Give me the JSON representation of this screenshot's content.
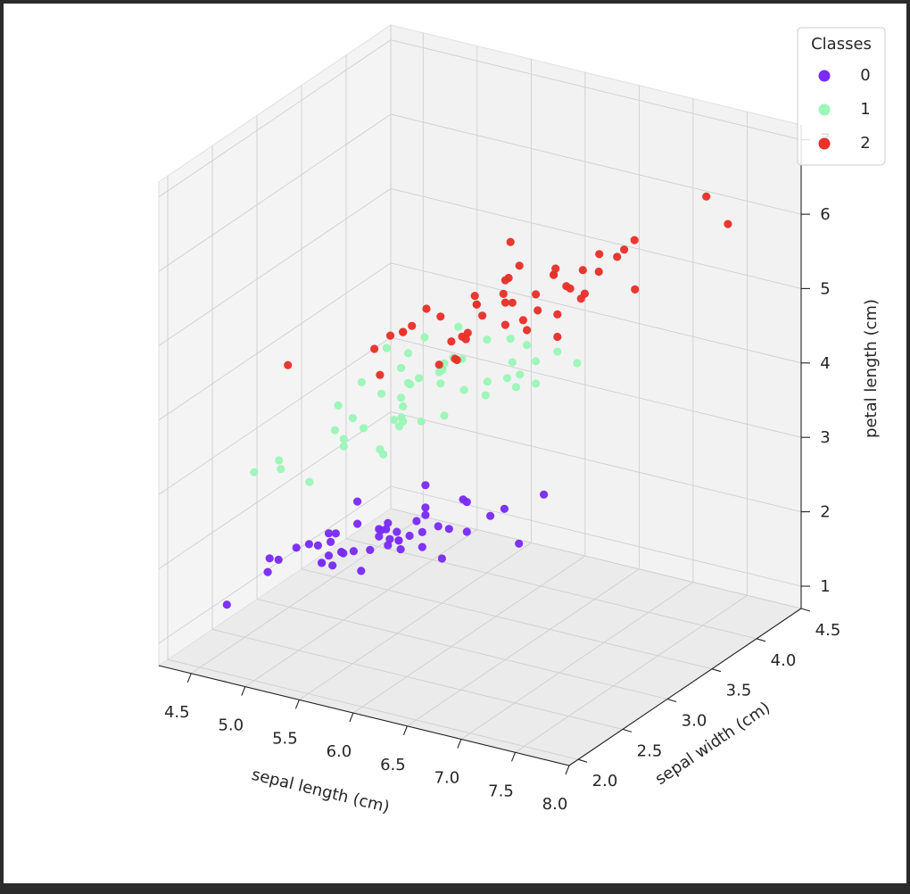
{
  "chart_data": {
    "type": "scatter",
    "subtype": "3d-scatter",
    "title": "",
    "xlabel": "sepal length (cm)",
    "ylabel": "sepal width (cm)",
    "zlabel": "petal length (cm)",
    "xlim": [
      4.2,
      8.0
    ],
    "ylim": [
      1.9,
      4.5
    ],
    "zlim": [
      0.7,
      7.2
    ],
    "xticks": [
      "4.5",
      "5.0",
      "5.5",
      "6.0",
      "6.5",
      "7.0",
      "7.5",
      "8.0"
    ],
    "yticks": [
      "2.0",
      "2.5",
      "3.0",
      "3.5",
      "4.0",
      "4.5"
    ],
    "zticks": [
      "1",
      "2",
      "3",
      "4",
      "5",
      "6",
      "7"
    ],
    "grid": true,
    "legend": {
      "title": "Classes",
      "placement": "top-right"
    },
    "series": [
      {
        "name": "0",
        "color": "#7a2cf5",
        "points": [
          [
            5.1,
            3.5,
            1.4
          ],
          [
            4.9,
            3.0,
            1.4
          ],
          [
            4.7,
            3.2,
            1.3
          ],
          [
            4.6,
            3.1,
            1.5
          ],
          [
            5.0,
            3.6,
            1.4
          ],
          [
            5.4,
            3.9,
            1.7
          ],
          [
            4.6,
            3.4,
            1.4
          ],
          [
            5.0,
            3.4,
            1.5
          ],
          [
            4.4,
            2.9,
            1.4
          ],
          [
            4.9,
            3.1,
            1.5
          ],
          [
            5.4,
            3.7,
            1.5
          ],
          [
            4.8,
            3.4,
            1.6
          ],
          [
            4.8,
            3.0,
            1.4
          ],
          [
            4.3,
            3.0,
            1.1
          ],
          [
            5.8,
            4.0,
            1.2
          ],
          [
            5.7,
            4.4,
            1.5
          ],
          [
            5.4,
            3.9,
            1.3
          ],
          [
            5.1,
            3.5,
            1.4
          ],
          [
            5.7,
            3.8,
            1.7
          ],
          [
            5.1,
            3.8,
            1.5
          ],
          [
            5.4,
            3.4,
            1.7
          ],
          [
            5.1,
            3.7,
            1.5
          ],
          [
            4.6,
            3.6,
            1.0
          ],
          [
            5.1,
            3.3,
            1.7
          ],
          [
            4.8,
            3.4,
            1.9
          ],
          [
            5.0,
            3.0,
            1.6
          ],
          [
            5.0,
            3.4,
            1.6
          ],
          [
            5.2,
            3.5,
            1.5
          ],
          [
            5.2,
            3.4,
            1.4
          ],
          [
            4.7,
            3.2,
            1.6
          ],
          [
            4.8,
            3.1,
            1.6
          ],
          [
            5.4,
            3.4,
            1.5
          ],
          [
            5.2,
            4.1,
            1.5
          ],
          [
            5.5,
            4.2,
            1.4
          ],
          [
            4.9,
            3.1,
            1.5
          ],
          [
            5.0,
            3.2,
            1.2
          ],
          [
            5.5,
            3.5,
            1.3
          ],
          [
            4.9,
            3.6,
            1.4
          ],
          [
            4.4,
            3.0,
            1.3
          ],
          [
            5.1,
            3.4,
            1.5
          ],
          [
            5.0,
            3.5,
            1.3
          ],
          [
            4.5,
            2.3,
            1.3
          ],
          [
            4.4,
            3.2,
            1.3
          ],
          [
            5.0,
            3.5,
            1.6
          ],
          [
            5.1,
            3.8,
            1.9
          ],
          [
            4.8,
            3.0,
            1.4
          ],
          [
            5.1,
            3.8,
            1.6
          ],
          [
            4.6,
            3.2,
            1.4
          ],
          [
            5.3,
            3.7,
            1.5
          ],
          [
            5.0,
            3.3,
            1.4
          ]
        ]
      },
      {
        "name": "1",
        "color": "#9cf6b8",
        "points": [
          [
            7.0,
            3.2,
            4.7
          ],
          [
            6.4,
            3.2,
            4.5
          ],
          [
            6.9,
            3.1,
            4.9
          ],
          [
            5.5,
            2.3,
            4.0
          ],
          [
            6.5,
            2.8,
            4.6
          ],
          [
            5.7,
            2.8,
            4.5
          ],
          [
            6.3,
            3.3,
            4.7
          ],
          [
            4.9,
            2.4,
            3.3
          ],
          [
            6.6,
            2.9,
            4.6
          ],
          [
            5.2,
            2.7,
            3.9
          ],
          [
            5.0,
            2.0,
            3.5
          ],
          [
            5.9,
            3.0,
            4.2
          ],
          [
            6.0,
            2.2,
            4.0
          ],
          [
            6.1,
            2.9,
            4.7
          ],
          [
            5.6,
            2.9,
            3.6
          ],
          [
            6.7,
            3.1,
            4.4
          ],
          [
            5.6,
            3.0,
            4.5
          ],
          [
            5.8,
            2.7,
            4.1
          ],
          [
            6.2,
            2.2,
            4.5
          ],
          [
            5.6,
            2.5,
            3.9
          ],
          [
            5.9,
            3.2,
            4.8
          ],
          [
            6.1,
            2.8,
            4.0
          ],
          [
            6.3,
            2.5,
            4.9
          ],
          [
            6.1,
            2.8,
            4.7
          ],
          [
            6.4,
            2.9,
            4.3
          ],
          [
            6.6,
            3.0,
            4.4
          ],
          [
            6.8,
            2.8,
            4.8
          ],
          [
            6.7,
            3.0,
            5.0
          ],
          [
            6.0,
            2.9,
            4.5
          ],
          [
            5.7,
            2.6,
            3.5
          ],
          [
            5.5,
            2.4,
            3.8
          ],
          [
            5.5,
            2.4,
            3.7
          ],
          [
            5.8,
            2.7,
            3.9
          ],
          [
            6.0,
            2.7,
            5.1
          ],
          [
            5.4,
            3.0,
            4.5
          ],
          [
            6.0,
            3.4,
            4.5
          ],
          [
            6.7,
            3.1,
            4.7
          ],
          [
            6.3,
            2.3,
            4.4
          ],
          [
            5.6,
            3.0,
            4.1
          ],
          [
            5.5,
            2.5,
            4.0
          ],
          [
            5.5,
            2.6,
            4.4
          ],
          [
            6.1,
            3.0,
            4.6
          ],
          [
            5.8,
            2.6,
            4.0
          ],
          [
            5.0,
            2.3,
            3.3
          ],
          [
            5.6,
            2.7,
            4.2
          ],
          [
            5.7,
            3.0,
            4.2
          ],
          [
            5.7,
            2.9,
            4.2
          ],
          [
            6.2,
            2.9,
            4.3
          ],
          [
            5.1,
            2.5,
            3.0
          ],
          [
            5.7,
            2.8,
            4.1
          ]
        ]
      },
      {
        "name": "2",
        "color": "#e8322a",
        "points": [
          [
            6.3,
            3.3,
            6.0
          ],
          [
            5.8,
            2.7,
            5.1
          ],
          [
            7.1,
            3.0,
            5.9
          ],
          [
            6.3,
            2.9,
            5.6
          ],
          [
            6.5,
            3.0,
            5.8
          ],
          [
            7.6,
            3.0,
            6.6
          ],
          [
            4.9,
            2.5,
            4.5
          ],
          [
            7.3,
            2.9,
            6.3
          ],
          [
            6.7,
            2.5,
            5.8
          ],
          [
            7.2,
            3.6,
            6.1
          ],
          [
            6.5,
            3.2,
            5.1
          ],
          [
            6.4,
            2.7,
            5.3
          ],
          [
            6.8,
            3.0,
            5.5
          ],
          [
            5.7,
            2.5,
            5.0
          ],
          [
            5.8,
            2.8,
            5.1
          ],
          [
            6.4,
            3.2,
            5.3
          ],
          [
            6.5,
            3.0,
            5.5
          ],
          [
            7.7,
            3.8,
            6.7
          ],
          [
            7.7,
            2.6,
            6.9
          ],
          [
            6.0,
            2.2,
            5.0
          ],
          [
            6.9,
            3.2,
            5.7
          ],
          [
            5.6,
            2.8,
            4.9
          ],
          [
            7.7,
            2.8,
            6.7
          ],
          [
            6.3,
            2.7,
            4.9
          ],
          [
            6.7,
            3.3,
            5.7
          ],
          [
            7.2,
            3.2,
            6.0
          ],
          [
            6.2,
            2.8,
            4.8
          ],
          [
            6.1,
            3.0,
            4.9
          ],
          [
            6.4,
            2.8,
            5.6
          ],
          [
            7.2,
            3.0,
            5.8
          ],
          [
            7.4,
            2.8,
            6.1
          ],
          [
            7.9,
            3.8,
            6.4
          ],
          [
            6.4,
            2.8,
            5.6
          ],
          [
            6.3,
            2.8,
            5.1
          ],
          [
            6.1,
            2.6,
            5.6
          ],
          [
            7.7,
            3.0,
            6.1
          ],
          [
            6.3,
            3.4,
            5.6
          ],
          [
            6.4,
            3.1,
            5.5
          ],
          [
            6.0,
            3.0,
            4.8
          ],
          [
            6.9,
            3.1,
            5.4
          ],
          [
            6.7,
            3.1,
            5.6
          ],
          [
            6.9,
            3.1,
            5.1
          ],
          [
            5.8,
            2.7,
            5.1
          ],
          [
            6.8,
            3.2,
            5.9
          ],
          [
            6.7,
            3.3,
            5.7
          ],
          [
            6.7,
            3.0,
            5.2
          ],
          [
            6.3,
            2.5,
            5.0
          ],
          [
            6.5,
            3.0,
            5.2
          ],
          [
            6.2,
            3.4,
            5.4
          ],
          [
            5.9,
            3.0,
            5.1
          ]
        ]
      }
    ]
  }
}
